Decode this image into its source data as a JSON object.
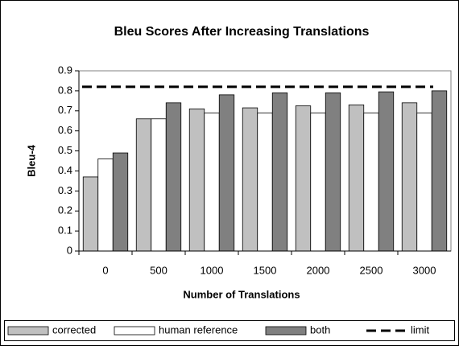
{
  "chart_data": {
    "type": "bar",
    "title": "Bleu Scores After Increasing Translations",
    "x_label": "Number of Translations",
    "y_label": "Bleu-4",
    "categories": [
      "0",
      "500",
      "1000",
      "1500",
      "2000",
      "2500",
      "3000"
    ],
    "series": [
      {
        "name": "corrected",
        "color": "#c0c0c0",
        "values": [
          0.37,
          0.66,
          0.71,
          0.715,
          0.725,
          0.73,
          0.74
        ]
      },
      {
        "name": "human reference",
        "color": "#ffffff",
        "values": [
          0.46,
          0.66,
          0.69,
          0.69,
          0.69,
          0.69,
          0.69
        ]
      },
      {
        "name": "both",
        "color": "#808080",
        "values": [
          0.49,
          0.74,
          0.78,
          0.79,
          0.79,
          0.795,
          0.8
        ]
      }
    ],
    "reference_line": {
      "name": "limit",
      "value": 0.82,
      "color": "#000000"
    },
    "ylim": [
      0,
      0.9
    ],
    "yticks": [
      0,
      0.1,
      0.2,
      0.3,
      0.4,
      0.5,
      0.6,
      0.7,
      0.8,
      0.9
    ],
    "legend": "bottom"
  }
}
